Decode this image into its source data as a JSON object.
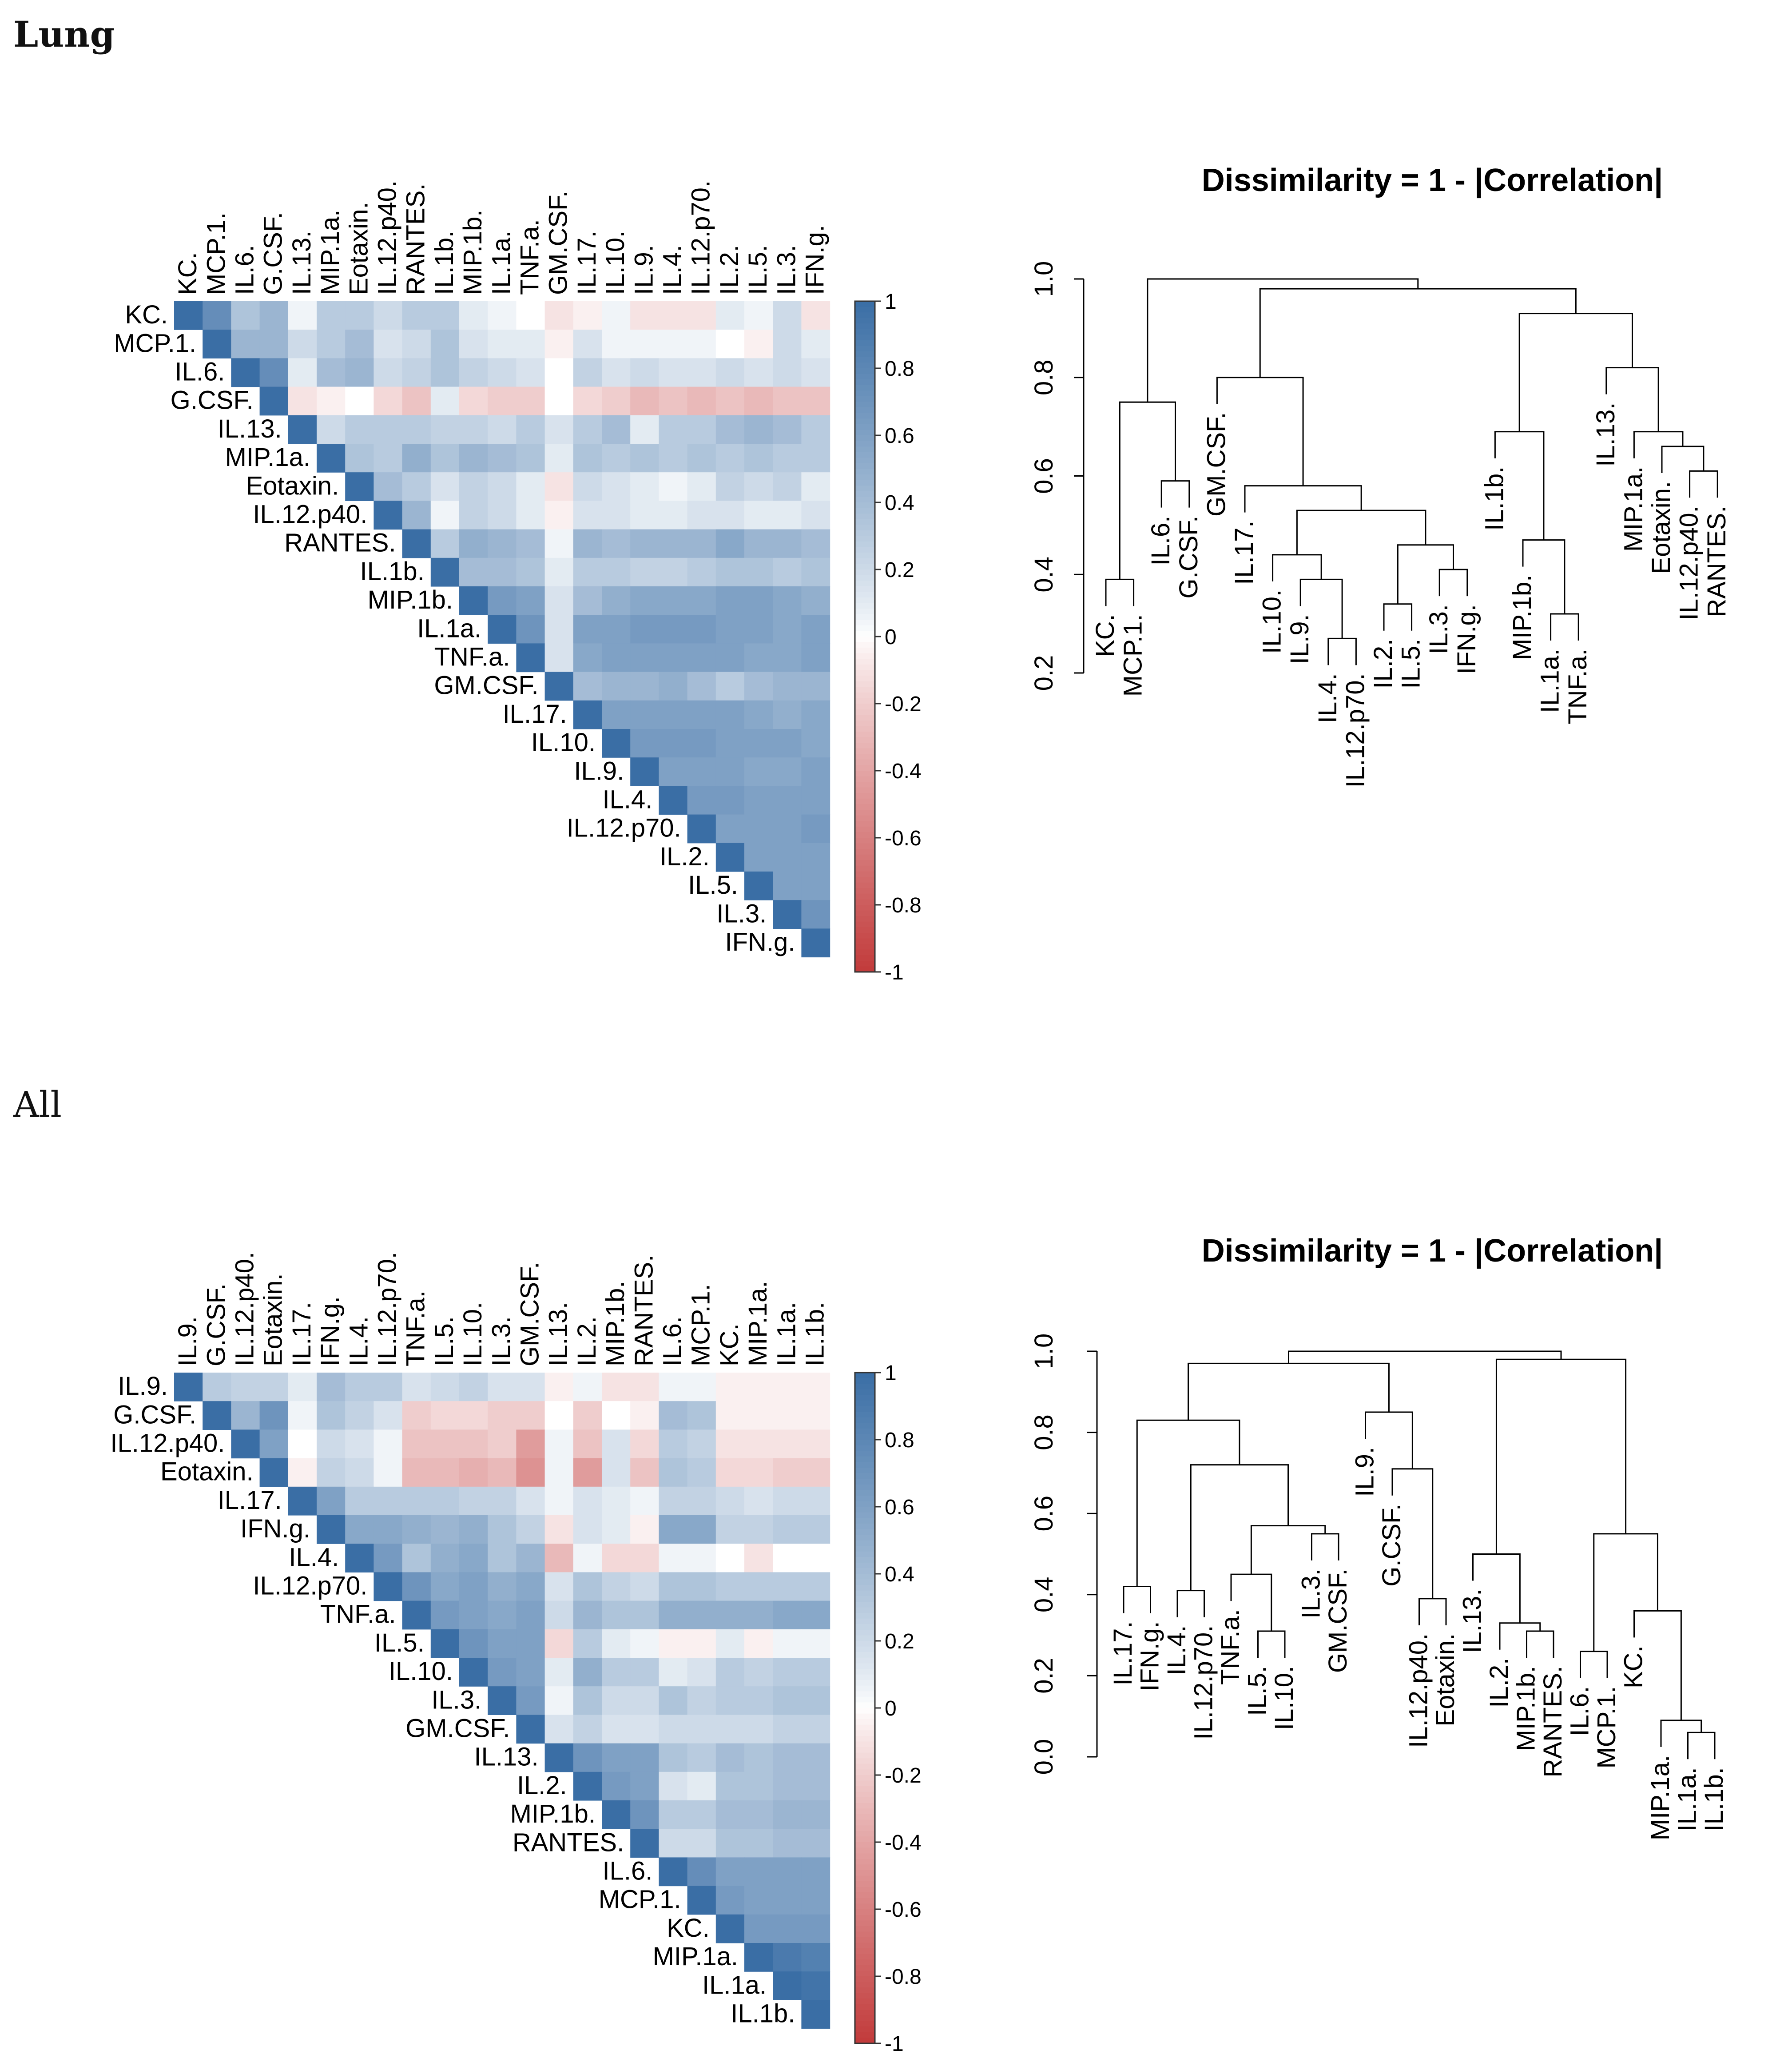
{
  "sections": [
    {
      "key": "lung",
      "label": "Lung"
    },
    {
      "key": "all",
      "label": "All"
    }
  ],
  "chart_data": [
    {
      "type": "heatmap",
      "panel": "Lung correlation matrix",
      "variables": [
        "KC.",
        "MCP.1.",
        "IL.6.",
        "G.CSF.",
        "IL.13.",
        "MIP.1a.",
        "Eotaxin.",
        "IL.12.p40.",
        "RANTES.",
        "IL.1b.",
        "MIP.1b.",
        "IL.1a.",
        "TNF.a.",
        "GM.CSF.",
        "IL.17.",
        "IL.10.",
        "IL.9.",
        "IL.4.",
        "IL.12.p70.",
        "IL.2.",
        "IL.5.",
        "IL.3.",
        "IFN.g."
      ],
      "matrix_upper": [
        [
          1,
          0.75,
          0.35,
          0.45,
          0.05,
          0.3,
          0.3,
          0.2,
          0.3,
          0.3,
          0.1,
          0.05,
          0.0,
          -0.1,
          -0.05,
          0.05,
          -0.1,
          -0.1,
          -0.1,
          0.1,
          0.05,
          0.2,
          -0.1
        ],
        [
          1,
          0.45,
          0.45,
          0.2,
          0.3,
          0.4,
          0.15,
          0.2,
          0.35,
          0.15,
          0.1,
          0.1,
          -0.05,
          0.15,
          0.05,
          0.05,
          0.05,
          0.05,
          0.0,
          -0.05,
          0.2,
          0.1
        ],
        [
          1,
          0.75,
          0.1,
          0.4,
          0.45,
          0.2,
          0.25,
          0.35,
          0.25,
          0.2,
          0.15,
          0.0,
          0.25,
          0.15,
          0.2,
          0.15,
          0.15,
          0.2,
          0.15,
          0.2,
          0.15
        ],
        [
          1,
          -0.1,
          -0.05,
          0.0,
          -0.15,
          -0.25,
          0.1,
          -0.15,
          -0.2,
          -0.2,
          0.0,
          -0.15,
          -0.2,
          -0.3,
          -0.25,
          -0.3,
          -0.25,
          -0.3,
          -0.25,
          -0.25
        ],
        [
          1,
          0.2,
          0.3,
          0.3,
          0.3,
          0.25,
          0.25,
          0.2,
          0.3,
          0.15,
          0.3,
          0.4,
          0.1,
          0.3,
          0.3,
          0.4,
          0.45,
          0.4,
          0.3
        ],
        [
          1,
          0.35,
          0.3,
          0.5,
          0.35,
          0.45,
          0.4,
          0.35,
          0.1,
          0.35,
          0.3,
          0.35,
          0.3,
          0.35,
          0.3,
          0.35,
          0.3,
          0.3
        ],
        [
          1,
          0.4,
          0.3,
          0.15,
          0.25,
          0.2,
          0.1,
          -0.1,
          0.2,
          0.15,
          0.1,
          0.05,
          0.1,
          0.25,
          0.2,
          0.25,
          0.1
        ],
        [
          1,
          0.45,
          0.05,
          0.25,
          0.2,
          0.1,
          -0.05,
          0.15,
          0.15,
          0.1,
          0.1,
          0.15,
          0.15,
          0.1,
          0.1,
          0.15
        ],
        [
          1,
          0.3,
          0.5,
          0.45,
          0.4,
          0.05,
          0.45,
          0.4,
          0.45,
          0.45,
          0.45,
          0.55,
          0.45,
          0.45,
          0.4
        ],
        [
          1,
          0.4,
          0.4,
          0.35,
          0.1,
          0.3,
          0.3,
          0.25,
          0.25,
          0.3,
          0.35,
          0.35,
          0.3,
          0.35
        ],
        [
          1,
          0.65,
          0.6,
          0.15,
          0.4,
          0.5,
          0.55,
          0.55,
          0.55,
          0.6,
          0.6,
          0.55,
          0.5
        ],
        [
          1,
          0.7,
          0.15,
          0.6,
          0.6,
          0.65,
          0.65,
          0.65,
          0.6,
          0.6,
          0.55,
          0.6
        ],
        [
          1,
          0.15,
          0.55,
          0.6,
          0.6,
          0.6,
          0.6,
          0.6,
          0.55,
          0.55,
          0.6
        ],
        [
          1,
          0.4,
          0.45,
          0.45,
          0.5,
          0.4,
          0.3,
          0.4,
          0.45,
          0.45
        ],
        [
          1,
          0.6,
          0.6,
          0.6,
          0.6,
          0.6,
          0.55,
          0.5,
          0.55
        ],
        [
          1,
          0.65,
          0.65,
          0.65,
          0.6,
          0.6,
          0.6,
          0.55
        ],
        [
          1,
          0.6,
          0.6,
          0.6,
          0.55,
          0.55,
          0.6
        ],
        [
          1,
          0.65,
          0.65,
          0.6,
          0.6,
          0.6
        ],
        [
          1,
          0.6,
          0.6,
          0.6,
          0.65
        ],
        [
          1,
          0.6,
          0.6,
          0.6
        ],
        [
          1,
          0.6,
          0.6
        ],
        [
          1,
          0.7
        ],
        [
          1
        ]
      ],
      "colorbar": {
        "range": [
          -1,
          1
        ],
        "ticks": [
          "1",
          "0.8",
          "0.6",
          "0.4",
          "0.2",
          "0",
          "-0.2",
          "-0.4",
          "-0.6",
          "-0.8",
          "-1"
        ],
        "colors": {
          "negative": "#c23b3b",
          "zero": "#ffffff",
          "positive": "#3a6ea5"
        }
      }
    },
    {
      "type": "dendrogram",
      "panel": "Lung clustering",
      "title": "Dissimilarity = 1 - |Correlation|",
      "ylim": [
        0.2,
        1.0
      ],
      "yticks": [
        "0.2",
        "0.4",
        "0.6",
        "0.8",
        "1.0"
      ],
      "leaves": [
        "KC.",
        "MCP.1.",
        "IL.6.",
        "G.CSF.",
        "GM.CSF.",
        "IL.17.",
        "IL.10.",
        "IL.9.",
        "IL.4.",
        "IL.12.p70.",
        "IL.2.",
        "IL.5.",
        "IL.3.",
        "IFN.g.",
        "IL.1b.",
        "MIP.1b.",
        "IL.1a.",
        "TNF.a.",
        "IL.13.",
        "MIP.1a.",
        "Eotaxin.",
        "IL.12.p40.",
        "RANTES."
      ],
      "merges": [
        [
          0,
          1,
          0.39
        ],
        [
          2,
          3,
          0.59
        ],
        [
          8,
          9,
          0.27
        ],
        [
          7,
          25,
          0.39
        ],
        [
          6,
          26,
          0.44
        ],
        [
          10,
          11,
          0.34
        ],
        [
          12,
          13,
          0.41
        ],
        [
          28,
          29,
          0.46
        ],
        [
          27,
          30,
          0.53
        ],
        [
          5,
          31,
          0.58
        ],
        [
          4,
          32,
          0.8
        ],
        [
          16,
          17,
          0.32
        ],
        [
          15,
          34,
          0.47
        ],
        [
          14,
          35,
          0.69
        ],
        [
          21,
          22,
          0.61
        ],
        [
          20,
          37,
          0.66
        ],
        [
          19,
          38,
          0.69
        ],
        [
          18,
          39,
          0.82
        ],
        [
          36,
          40,
          0.93
        ],
        [
          33,
          41,
          0.98
        ],
        [
          23,
          24,
          0.75
        ],
        [
          43,
          42,
          1.0
        ]
      ]
    },
    {
      "type": "heatmap",
      "panel": "All correlation matrix",
      "variables": [
        "IL.9.",
        "G.CSF.",
        "IL.12.p40.",
        "Eotaxin.",
        "IL.17.",
        "IFN.g.",
        "IL.4.",
        "IL.12.p70.",
        "TNF.a.",
        "IL.5.",
        "IL.10.",
        "IL.3.",
        "GM.CSF.",
        "IL.13.",
        "IL.2.",
        "MIP.1b.",
        "RANTES.",
        "IL.6.",
        "MCP.1.",
        "KC.",
        "MIP.1a.",
        "IL.1a.",
        "IL.1b."
      ],
      "matrix_upper": [
        [
          1,
          0.3,
          0.25,
          0.25,
          0.1,
          0.4,
          0.3,
          0.3,
          0.15,
          0.2,
          0.25,
          0.15,
          0.15,
          -0.05,
          0.05,
          -0.1,
          -0.1,
          0.05,
          0.05,
          -0.05,
          -0.05,
          -0.05,
          -0.05
        ],
        [
          1,
          0.45,
          0.7,
          0.05,
          0.35,
          0.25,
          0.15,
          -0.2,
          -0.15,
          -0.15,
          -0.2,
          -0.2,
          0.0,
          -0.2,
          0.0,
          -0.05,
          0.4,
          0.35,
          -0.05,
          -0.05,
          -0.05,
          -0.05
        ],
        [
          1,
          0.6,
          0.0,
          0.2,
          0.15,
          0.05,
          -0.25,
          -0.25,
          -0.25,
          -0.2,
          -0.45,
          0.05,
          -0.25,
          0.15,
          -0.15,
          0.3,
          0.25,
          -0.1,
          -0.1,
          -0.1,
          -0.1
        ],
        [
          1,
          -0.05,
          0.25,
          0.2,
          0.05,
          -0.3,
          -0.3,
          -0.35,
          -0.3,
          -0.5,
          0.05,
          -0.45,
          0.15,
          -0.25,
          0.35,
          0.3,
          -0.15,
          -0.15,
          -0.2,
          -0.2
        ],
        [
          1,
          0.6,
          0.3,
          0.3,
          0.3,
          0.3,
          0.25,
          0.25,
          0.15,
          0.05,
          0.15,
          0.1,
          0.05,
          0.25,
          0.25,
          0.2,
          0.15,
          0.2,
          0.2
        ],
        [
          1,
          0.55,
          0.55,
          0.5,
          0.45,
          0.5,
          0.35,
          0.25,
          -0.1,
          0.15,
          0.1,
          -0.05,
          0.55,
          0.55,
          0.25,
          0.25,
          0.3,
          0.3
        ],
        [
          1,
          0.65,
          0.35,
          0.5,
          0.55,
          0.35,
          0.45,
          -0.3,
          0.05,
          -0.15,
          -0.15,
          0.05,
          0.05,
          0.0,
          -0.1,
          0.0,
          0.0
        ],
        [
          1,
          0.7,
          0.55,
          0.6,
          0.5,
          0.55,
          0.15,
          0.35,
          0.25,
          0.2,
          0.35,
          0.35,
          0.3,
          0.3,
          0.3,
          0.3
        ],
        [
          1,
          0.65,
          0.6,
          0.55,
          0.6,
          0.2,
          0.45,
          0.35,
          0.35,
          0.5,
          0.5,
          0.5,
          0.5,
          0.55,
          0.55
        ],
        [
          1,
          0.7,
          0.6,
          0.6,
          -0.15,
          0.3,
          0.1,
          0.05,
          -0.05,
          -0.05,
          0.1,
          -0.05,
          0.05,
          0.05
        ],
        [
          1,
          0.65,
          0.6,
          0.1,
          0.5,
          0.3,
          0.3,
          0.1,
          0.15,
          0.3,
          0.25,
          0.3,
          0.3
        ],
        [
          1,
          0.65,
          0.05,
          0.35,
          0.2,
          0.2,
          0.35,
          0.25,
          0.3,
          0.3,
          0.35,
          0.35
        ],
        [
          1,
          0.15,
          0.25,
          0.15,
          0.15,
          0.2,
          0.2,
          0.2,
          0.2,
          0.25,
          0.25
        ],
        [
          1,
          0.7,
          0.6,
          0.6,
          0.35,
          0.3,
          0.4,
          0.35,
          0.4,
          0.4
        ],
        [
          1,
          0.65,
          0.6,
          0.15,
          0.1,
          0.35,
          0.35,
          0.4,
          0.4
        ],
        [
          1,
          0.7,
          0.3,
          0.3,
          0.4,
          0.4,
          0.45,
          0.45
        ],
        [
          1,
          0.2,
          0.2,
          0.35,
          0.35,
          0.4,
          0.4
        ],
        [
          1,
          0.75,
          0.6,
          0.6,
          0.6,
          0.6
        ],
        [
          1,
          0.65,
          0.6,
          0.6,
          0.6
        ],
        [
          1,
          0.65,
          0.65,
          0.65
        ],
        [
          1,
          0.9,
          0.85
        ],
        [
          1,
          0.95
        ],
        [
          1
        ]
      ],
      "colorbar": {
        "range": [
          -1,
          1
        ],
        "ticks": [
          "1",
          "0.8",
          "0.6",
          "0.4",
          "0.2",
          "0",
          "-0.2",
          "-0.4",
          "-0.6",
          "-0.8",
          "-1"
        ],
        "colors": {
          "negative": "#c23b3b",
          "zero": "#ffffff",
          "positive": "#3a6ea5"
        }
      }
    },
    {
      "type": "dendrogram",
      "panel": "All clustering",
      "title": "Dissimilarity = 1 - |Correlation|",
      "ylim": [
        0.0,
        1.0
      ],
      "yticks": [
        "0.0",
        "0.2",
        "0.4",
        "0.6",
        "0.8",
        "1.0"
      ],
      "leaves": [
        "IL.17.",
        "IFN.g.",
        "IL.4.",
        "IL.12.p70.",
        "TNF.a.",
        "IL.5.",
        "IL.10.",
        "IL.3.",
        "GM.CSF.",
        "IL.9.",
        "G.CSF.",
        "IL.12.p40.",
        "Eotaxin.",
        "IL.13.",
        "IL.2.",
        "MIP.1b.",
        "RANTES.",
        "IL.6.",
        "MCP.1.",
        "KC.",
        "MIP.1a.",
        "IL.1a.",
        "IL.1b."
      ],
      "merges": [
        [
          0,
          1,
          0.42
        ],
        [
          2,
          3,
          0.41
        ],
        [
          5,
          6,
          0.31
        ],
        [
          4,
          25,
          0.45
        ],
        [
          7,
          8,
          0.55
        ],
        [
          26,
          27,
          0.57
        ],
        [
          24,
          28,
          0.72
        ],
        [
          23,
          29,
          0.83
        ],
        [
          11,
          12,
          0.39
        ],
        [
          10,
          31,
          0.71
        ],
        [
          9,
          32,
          0.85
        ],
        [
          30,
          33,
          0.97
        ],
        [
          15,
          16,
          0.31
        ],
        [
          14,
          35,
          0.33
        ],
        [
          13,
          36,
          0.5
        ],
        [
          21,
          22,
          0.06
        ],
        [
          20,
          38,
          0.09
        ],
        [
          19,
          39,
          0.36
        ],
        [
          17,
          18,
          0.26
        ],
        [
          40,
          41,
          0.55
        ],
        [
          37,
          42,
          0.98
        ],
        [
          34,
          43,
          1.0
        ]
      ]
    }
  ]
}
